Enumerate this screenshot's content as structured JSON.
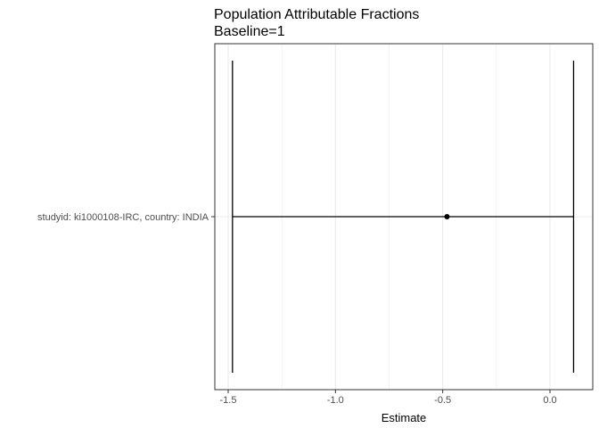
{
  "chart_data": {
    "type": "forest",
    "title": "Population Attributable Fractions",
    "subtitle": "Baseline=1",
    "xlabel": "Estimate",
    "ylabel": "",
    "xlim": [
      -1.5,
      0.12
    ],
    "x_ticks": [
      -1.5,
      -1.0,
      -0.5,
      0.0
    ],
    "x_tick_labels": [
      "-1.5",
      "-1.0",
      "-0.5",
      "0.0"
    ],
    "grid": true,
    "categories": [
      "studyid: ki1000108-IRC, country: INDIA"
    ],
    "points": [
      {
        "category": "studyid: ki1000108-IRC, country: INDIA",
        "estimate": -0.48,
        "lower": -1.48,
        "upper": 0.11
      }
    ],
    "colors": {
      "panel_border": "#333333",
      "grid": "#ebebeb",
      "mark": "#000000"
    }
  }
}
